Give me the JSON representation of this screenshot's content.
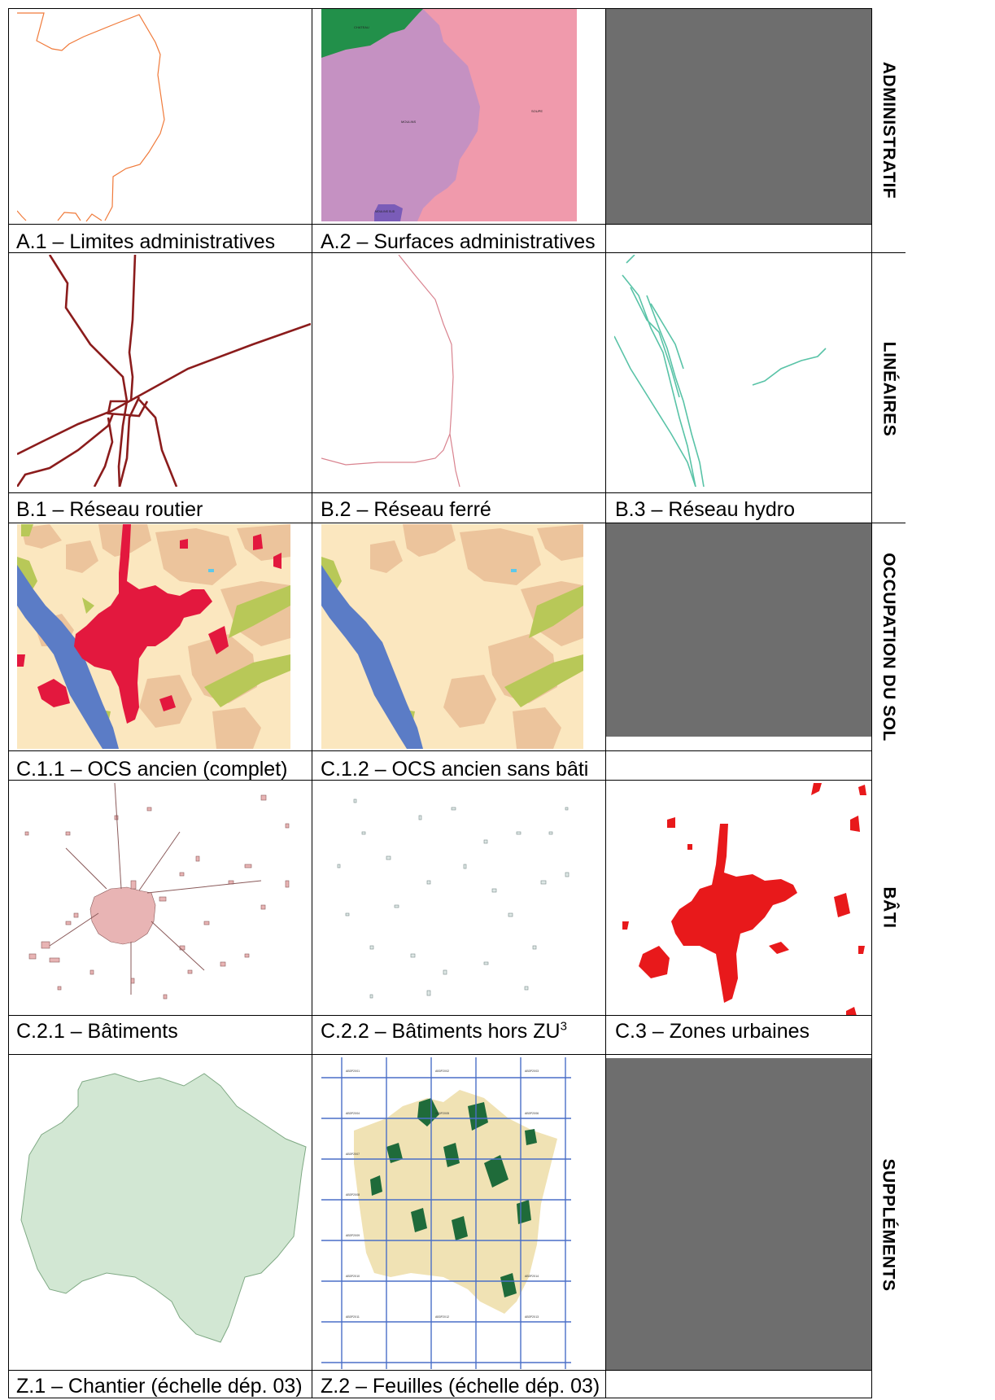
{
  "sections": [
    {
      "label": "ADMINISTRATIF"
    },
    {
      "label": "LINÉAIRES"
    },
    {
      "label": "OCCUPATION DU SOL"
    },
    {
      "label": "BÂTI"
    },
    {
      "label": "SUPPLÉMENTS"
    }
  ],
  "captions": {
    "a1": "A.1 – Limites administratives",
    "a2": "A.2 – Surfaces administratives",
    "b1": "B.1 – Réseau routier",
    "b2": "B.2 – Réseau ferré",
    "b3": "B.3 – Réseau hydro",
    "c11": "C.1.1 – OCS ancien (complet)",
    "c12": "C.1.2 – OCS ancien sans bâti",
    "c21": "C.2.1 – Bâtiments",
    "c22": "C.2.2 – Bâtiments hors ZU",
    "c22_sup": "3",
    "c3": "C.3 – Zones urbaines",
    "z1": "Z.1 – Chantier (échelle dép. 03)",
    "z2": "Z.2 – Feuilles (échelle dép. 03)"
  },
  "map_labels": {
    "a2_commune_nw": "CHATEAU",
    "a2_commune_center": "MOULINS",
    "a2_commune_east": "SOUPE",
    "a2_commune_south": "MOULINS SUD"
  },
  "sheet_labels": [
    "AB3P2X01",
    "AB3P2X02",
    "AB3P2X03",
    "AB3P2X04",
    "AB3P2X05",
    "AB3P2X06",
    "AB3P2X07",
    "AB3P2X08",
    "AB3P2X09",
    "AB3P2X10",
    "AB3P2X11",
    "AB3P2X12",
    "AB3P2X13",
    "AB3P2X14"
  ],
  "colors": {
    "admin_line": "#f07a3a",
    "road": "#8b1c1c",
    "rail": "#d9838f",
    "hydro": "#59c3a7",
    "urban": "#e3183e",
    "urban_zone": "#e8191b",
    "water": "#5b7cc6",
    "ocs_bg": "#fbe7bf",
    "ocs_agri": "#ecc49c",
    "ocs_green": "#b8c858",
    "commune_purple": "#c591c2",
    "commune_pink": "#f09aac",
    "commune_green": "#22904a",
    "chantier_fill": "#d2e7d3",
    "placeholder": "#6e6e6e",
    "sheet_grid": "#4a6fc7"
  }
}
